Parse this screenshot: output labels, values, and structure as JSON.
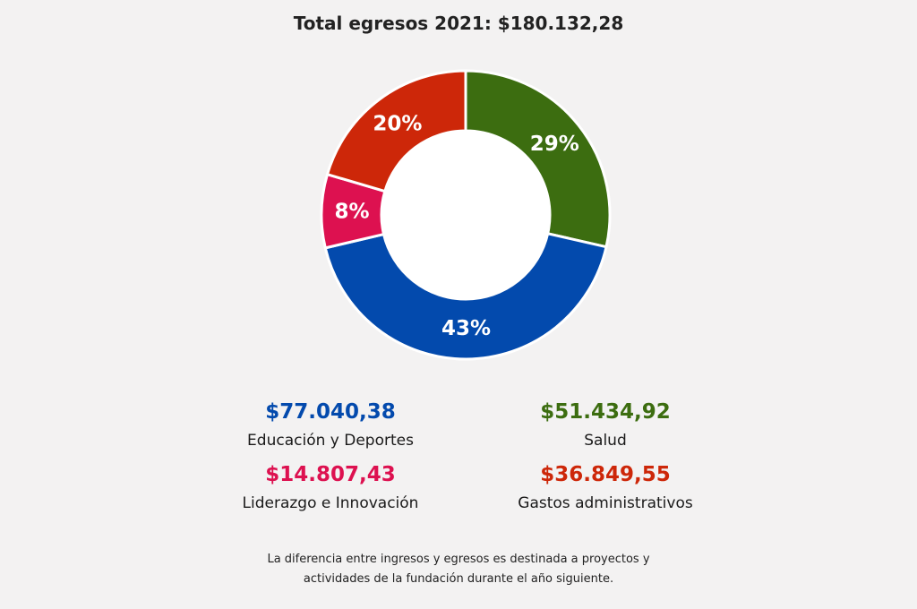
{
  "chart_data": {
    "type": "pie",
    "title": "Total egresos 2021: $180.132,28",
    "categories": [
      "Salud",
      "Educación y Deportes",
      "Liderazgo e Innovación",
      "Gastos administrativos"
    ],
    "values": [
      51434.92,
      77040.38,
      14807.43,
      36849.55
    ],
    "percent_labels": [
      "29%",
      "43%",
      "8%",
      "20%"
    ],
    "value_labels": [
      "$51.434,92",
      "$77.040,38",
      "$14.807,43",
      "$36.849,55"
    ],
    "colors": [
      "#3c6d10",
      "#034aad",
      "#dd1150",
      "#cd2709"
    ],
    "donut": true
  },
  "legend": [
    {
      "value": "$77.040,38",
      "label": "Educación y Deportes",
      "color": "#034aad"
    },
    {
      "value": "$51.434,92",
      "label": "Salud",
      "color": "#3c6d10"
    },
    {
      "value": "$14.807,43",
      "label": "Liderazgo e Innovación",
      "color": "#dd1150"
    },
    {
      "value": "$36.849,55",
      "label": "Gastos administrativos",
      "color": "#cd2709"
    }
  ],
  "footnote": "La diferencia entre ingresos y egresos es destinada a proyectos y actividades de la fundación durante el año siguiente."
}
